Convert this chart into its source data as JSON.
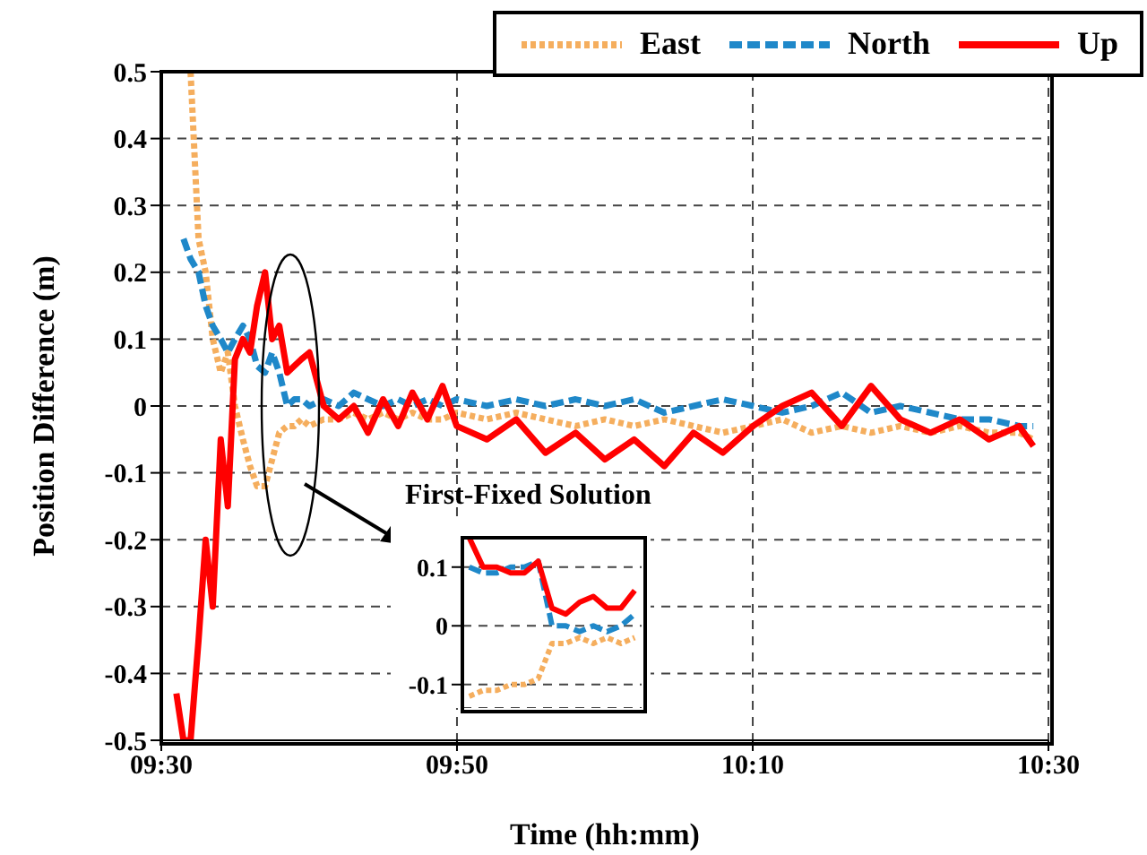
{
  "chart_data": [
    {
      "type": "line",
      "xlabel": "Time (hh:mm)",
      "ylabel": "Position Difference (m)",
      "annotations": [
        "First-Fixed Solution"
      ],
      "xlim": [
        9.5,
        10.5
      ],
      "xticks": [
        {
          "value": 9.5,
          "label": "09:30"
        },
        {
          "value": 9.8333,
          "label": "09:50"
        },
        {
          "value": 10.1667,
          "label": "10:10"
        },
        {
          "value": 10.5,
          "label": "10:30"
        }
      ],
      "ylim": [
        -0.5,
        0.5
      ],
      "yticks": [
        -0.5,
        -0.4,
        -0.3,
        -0.2,
        -0.1,
        0,
        0.1,
        0.2,
        0.3,
        0.4,
        0.5
      ],
      "grid": true,
      "legend": "top right",
      "marker": "none",
      "x": [
        9.517,
        9.525,
        9.533,
        9.542,
        9.55,
        9.558,
        9.567,
        9.575,
        9.583,
        9.592,
        9.6,
        9.608,
        9.617,
        9.625,
        9.633,
        9.642,
        9.65,
        9.658,
        9.667,
        9.683,
        9.7,
        9.717,
        9.733,
        9.75,
        9.767,
        9.783,
        9.8,
        9.817,
        9.833,
        9.867,
        9.9,
        9.933,
        9.967,
        10,
        10.033,
        10.067,
        10.1,
        10.133,
        10.167,
        10.2,
        10.233,
        10.267,
        10.3,
        10.333,
        10.367,
        10.4,
        10.433,
        10.467,
        10.483
      ],
      "series": [
        {
          "name": "East",
          "color": "#f5ae5e",
          "line_style": "dotted",
          "values": [
            null,
            null,
            0.5,
            0.25,
            0.2,
            0.1,
            0.05,
            0.08,
            0,
            -0.05,
            -0.09,
            -0.12,
            -0.12,
            -0.08,
            -0.04,
            -0.03,
            -0.03,
            -0.02,
            -0.03,
            -0.02,
            -0.02,
            -0.01,
            -0.02,
            -0.01,
            -0.02,
            -0.01,
            -0.02,
            -0.02,
            -0.01,
            -0.02,
            -0.01,
            -0.02,
            -0.03,
            -0.02,
            -0.03,
            -0.02,
            -0.03,
            -0.04,
            -0.03,
            -0.02,
            -0.04,
            -0.03,
            -0.04,
            -0.03,
            -0.04,
            -0.03,
            -0.04,
            -0.04,
            -0.05
          ]
        },
        {
          "name": "North",
          "color": "#1f88c9",
          "line_style": "dashed",
          "values": [
            null,
            0.25,
            0.22,
            0.2,
            0.15,
            0.12,
            0.1,
            0.08,
            0.1,
            0.12,
            0.1,
            0.06,
            0.05,
            0.08,
            0.05,
            0,
            0.01,
            0.01,
            0,
            0.01,
            0,
            0.02,
            0.01,
            0,
            0.01,
            0,
            0.01,
            0,
            0.01,
            0,
            0.01,
            0,
            0.01,
            0,
            0.01,
            -0.01,
            0,
            0.01,
            0,
            -0.01,
            0,
            0.02,
            -0.01,
            0,
            -0.01,
            -0.02,
            -0.02,
            -0.03,
            -0.03
          ]
        },
        {
          "name": "Up",
          "color": "#ff0000",
          "line_style": "solid",
          "values": [
            -0.43,
            -0.5,
            -0.5,
            -0.35,
            -0.2,
            -0.3,
            -0.05,
            -0.15,
            0.07,
            0.1,
            0.08,
            0.15,
            0.2,
            0.1,
            0.12,
            0.05,
            0.06,
            0.07,
            0.08,
            0,
            -0.02,
            0,
            -0.04,
            0.01,
            -0.03,
            0.02,
            -0.02,
            0.03,
            -0.03,
            -0.05,
            -0.02,
            -0.07,
            -0.04,
            -0.08,
            -0.05,
            -0.09,
            -0.04,
            -0.07,
            -0.03,
            0,
            0.02,
            -0.03,
            0.03,
            -0.02,
            -0.04,
            -0.02,
            -0.05,
            -0.03,
            -0.06
          ]
        }
      ]
    },
    {
      "type": "line",
      "categories": [
        null,
        null,
        null,
        null,
        null,
        null,
        null,
        null,
        null,
        null,
        null,
        null,
        null
      ],
      "ylim": [
        -0.14,
        0.15
      ],
      "yticks": [
        -0.1,
        0,
        0.1
      ],
      "grid": "y",
      "tick_labels": "y",
      "marker": "none",
      "series": [
        {
          "color": "#f5ae5e",
          "line_style": "dotted",
          "values": [
            -0.12,
            -0.11,
            -0.11,
            -0.1,
            -0.1,
            -0.09,
            -0.03,
            -0.03,
            -0.02,
            -0.03,
            -0.02,
            -0.03,
            -0.02
          ]
        },
        {
          "color": "#1f88c9",
          "line_style": "dashed",
          "values": [
            0.1,
            0.09,
            0.09,
            0.1,
            0.1,
            0.11,
            0,
            0,
            -0.01,
            0,
            -0.01,
            0,
            0.02
          ]
        },
        {
          "color": "#ff0000",
          "line_style": "solid",
          "values": [
            0.15,
            0.1,
            0.1,
            0.09,
            0.09,
            0.11,
            0.03,
            0.02,
            0.04,
            0.05,
            0.03,
            0.03,
            0.06
          ]
        }
      ]
    }
  ]
}
